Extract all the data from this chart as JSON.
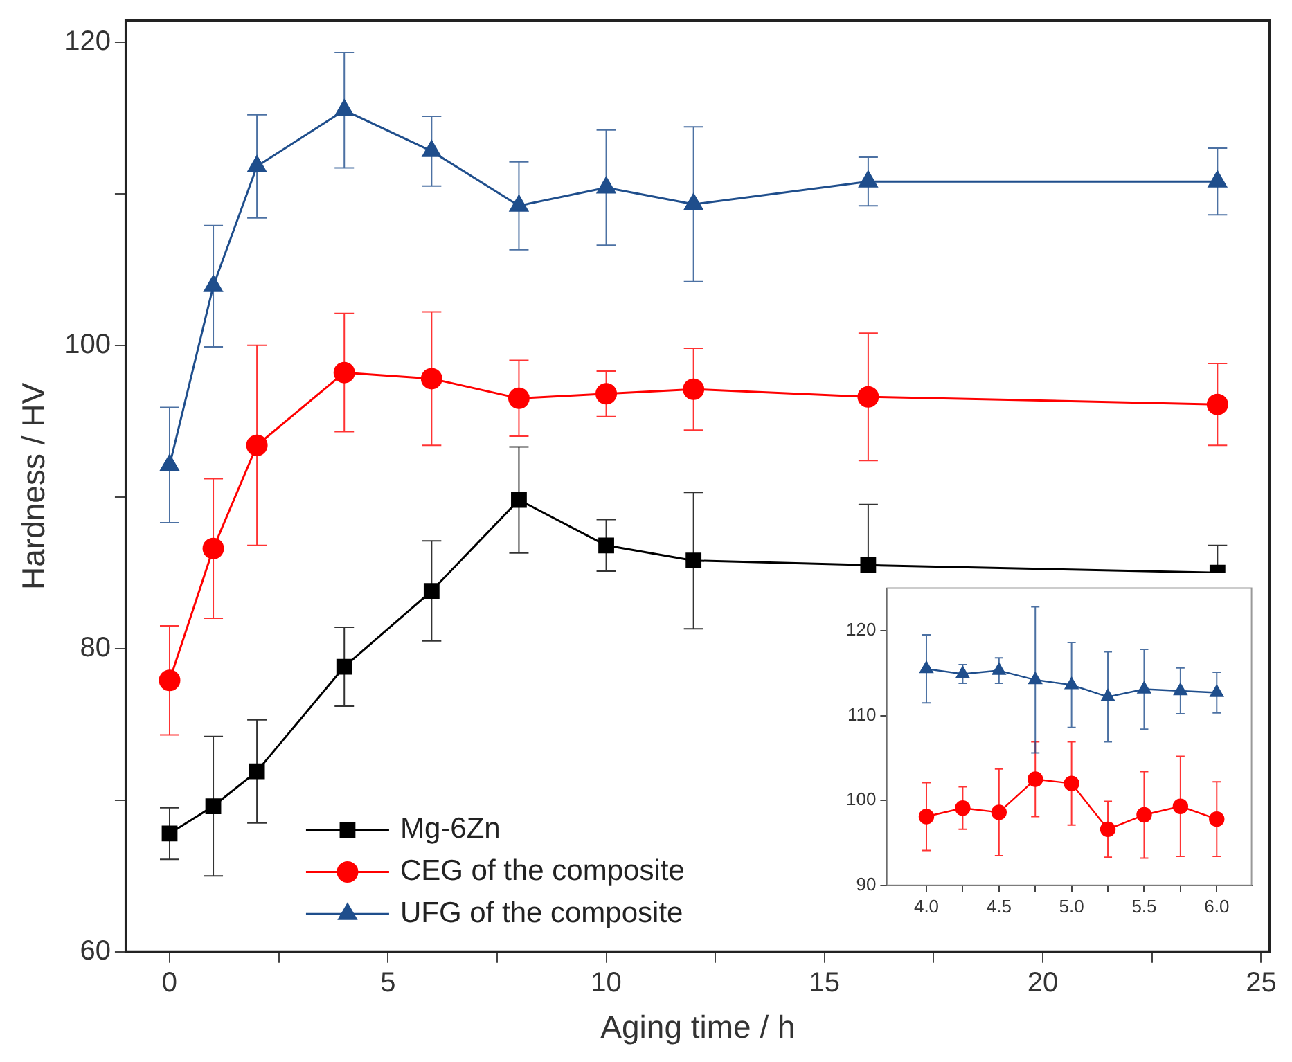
{
  "chart_data": [
    {
      "type": "line",
      "xlabel": "Aging time / h",
      "ylabel": "Hardness / HV",
      "x": [
        0,
        1,
        2,
        4,
        6,
        8,
        10,
        12,
        16,
        24
      ],
      "xlim": [
        -1,
        25.2
      ],
      "xticks": [
        0,
        {
          "value": 2.5,
          "label": null
        },
        5,
        {
          "value": 7.5,
          "label": null
        },
        10,
        {
          "value": 12.5,
          "label": null
        },
        15,
        {
          "value": 17.5,
          "label": null
        },
        20,
        {
          "value": 22.5,
          "label": null
        },
        25
      ],
      "ylim": [
        60,
        121.4
      ],
      "yticks": [
        60,
        {
          "value": 70,
          "label": null
        },
        80,
        {
          "value": 90,
          "label": null
        },
        100,
        {
          "value": 110,
          "label": null
        },
        120
      ],
      "grid": false,
      "legend": "bottom left",
      "line_style": "solid",
      "series": [
        {
          "name": "Mg-6Zn",
          "color": "#000000",
          "marker": "square",
          "values": [
            67.8,
            69.6,
            71.9,
            78.8,
            83.8,
            89.8,
            86.8,
            85.8,
            85.5,
            85.0
          ],
          "errors": [
            1.7,
            4.6,
            3.4,
            2.6,
            3.3,
            3.5,
            1.7,
            4.5,
            4.0,
            1.8
          ]
        },
        {
          "name": "CEG of the composite",
          "color": "#ff0000",
          "marker": "circle",
          "values": [
            77.9,
            86.6,
            93.4,
            98.2,
            97.8,
            96.5,
            96.8,
            97.1,
            96.6,
            96.1
          ],
          "errors": [
            3.6,
            4.6,
            6.6,
            3.9,
            4.4,
            2.5,
            1.5,
            2.7,
            4.2,
            2.7
          ]
        },
        {
          "name": "UFG of the composite",
          "color": "#1f4e8c",
          "marker": "triangle",
          "values": [
            92.1,
            103.9,
            111.8,
            115.5,
            112.8,
            109.2,
            110.4,
            109.3,
            110.8,
            110.8
          ],
          "errors": [
            3.8,
            4.0,
            3.4,
            3.8,
            2.3,
            2.9,
            3.8,
            5.1,
            1.6,
            2.2
          ]
        }
      ]
    },
    {
      "type": "line",
      "x": [
        4,
        4.25,
        4.5,
        4.75,
        5,
        5.25,
        5.5,
        5.75,
        6
      ],
      "xlim": [
        3.73,
        6.24
      ],
      "xticks": [
        {
          "value": 4,
          "label": "4.0"
        },
        {
          "value": 4.25,
          "label": null
        },
        {
          "value": 4.5,
          "label": "4.5"
        },
        {
          "value": 4.75,
          "label": null
        },
        {
          "value": 5,
          "label": "5.0"
        },
        {
          "value": 5.25,
          "label": null
        },
        {
          "value": 5.5,
          "label": "5.5"
        },
        {
          "value": 5.75,
          "label": null
        },
        {
          "value": 6,
          "label": "6.0"
        }
      ],
      "ylim": [
        90,
        125
      ],
      "yticks": [
        90,
        100,
        110,
        120
      ],
      "grid": false,
      "line_style": "solid",
      "series": [
        {
          "color": "#ff0000",
          "marker": "circle",
          "values": [
            98.1,
            99.1,
            98.6,
            102.5,
            102.0,
            96.6,
            98.3,
            99.3,
            97.8
          ],
          "errors": [
            4.0,
            2.5,
            5.1,
            4.4,
            4.9,
            3.3,
            5.1,
            5.9,
            4.4
          ]
        },
        {
          "color": "#1f4e8c",
          "marker": "triangle",
          "values": [
            115.5,
            114.9,
            115.3,
            114.2,
            113.6,
            112.2,
            113.1,
            112.9,
            112.7
          ],
          "errors": [
            4.0,
            1.1,
            1.5,
            8.6,
            5.0,
            5.3,
            4.7,
            2.7,
            2.4
          ]
        }
      ]
    }
  ]
}
